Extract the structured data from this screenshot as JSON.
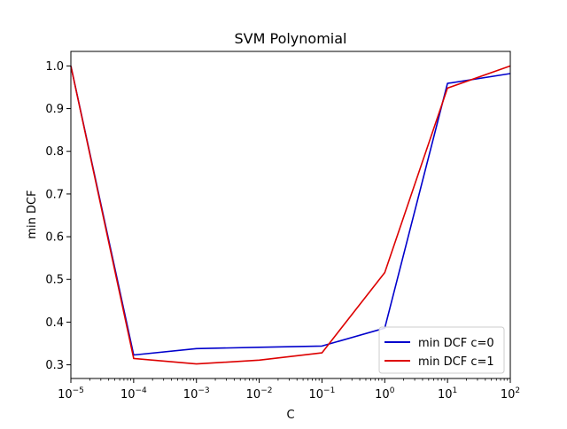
{
  "chart_data": {
    "type": "line",
    "title": "SVM Polynomial",
    "xlabel": "C",
    "ylabel": "min DCF",
    "x_scale": "log",
    "x": [
      1e-05,
      0.0001,
      0.001,
      0.01,
      0.1,
      1,
      10,
      100
    ],
    "xlim": [
      1e-05,
      100
    ],
    "ylim": [
      0.268,
      1.034
    ],
    "x_ticks": [
      {
        "value": 1e-05,
        "base": "10",
        "exp": "−5"
      },
      {
        "value": 0.0001,
        "base": "10",
        "exp": "−4"
      },
      {
        "value": 0.001,
        "base": "10",
        "exp": "−3"
      },
      {
        "value": 0.01,
        "base": "10",
        "exp": "−2"
      },
      {
        "value": 0.1,
        "base": "10",
        "exp": "−1"
      },
      {
        "value": 1,
        "base": "10",
        "exp": "0"
      },
      {
        "value": 10,
        "base": "10",
        "exp": "1"
      },
      {
        "value": 100,
        "base": "10",
        "exp": "2"
      }
    ],
    "y_ticks": [
      {
        "value": 0.3,
        "label": "0.3"
      },
      {
        "value": 0.4,
        "label": "0.4"
      },
      {
        "value": 0.5,
        "label": "0.5"
      },
      {
        "value": 0.6,
        "label": "0.6"
      },
      {
        "value": 0.7,
        "label": "0.7"
      },
      {
        "value": 0.8,
        "label": "0.8"
      },
      {
        "value": 0.9,
        "label": "0.9"
      },
      {
        "value": 1.0,
        "label": "1.0"
      }
    ],
    "series": [
      {
        "name": "min DCF c=0",
        "color": "#0000cc",
        "values": [
          1.0,
          0.323,
          0.338,
          0.341,
          0.344,
          0.386,
          0.959,
          0.982
        ]
      },
      {
        "name": "min DCF c=1",
        "color": "#dd0000",
        "values": [
          1.0,
          0.315,
          0.302,
          0.311,
          0.328,
          0.516,
          0.948,
          1.0
        ]
      }
    ],
    "legend": "lower-right",
    "grid": false
  }
}
